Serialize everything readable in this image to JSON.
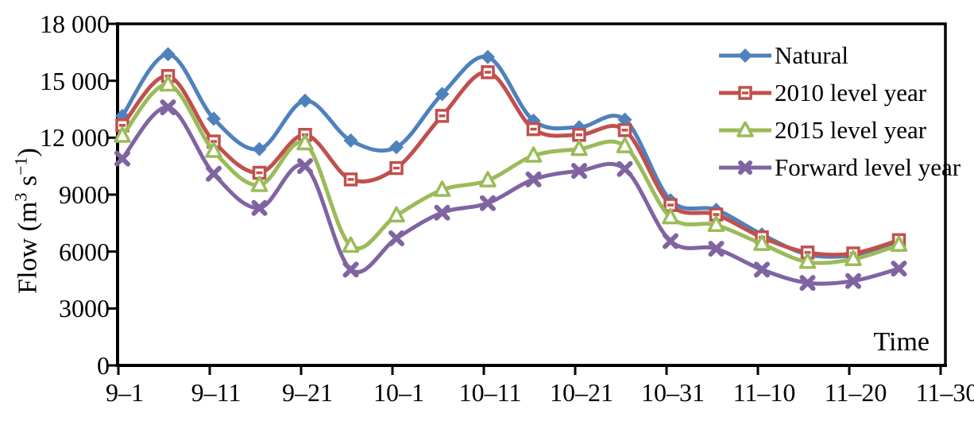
{
  "chart_data": {
    "type": "line",
    "title": "",
    "xlabel": "Time",
    "ylabel": "Flow (m³ s⁻¹)",
    "ylabel_parts": {
      "prefix": "Flow (m",
      "sup1": "3",
      "mid": " s",
      "sup2": "−1",
      "suffix": ")"
    },
    "ylim": [
      0,
      18000
    ],
    "grid": false,
    "legend_position": "top-right-inside",
    "plot_border": true,
    "axis_color": "#000000",
    "y_ticks": [
      {
        "value": 0,
        "label": "0"
      },
      {
        "value": 3000,
        "label": "3000"
      },
      {
        "value": 6000,
        "label": "6000"
      },
      {
        "value": 9000,
        "label": "9000"
      },
      {
        "value": 12000,
        "label": "12 000"
      },
      {
        "value": 15000,
        "label": "15 000"
      },
      {
        "value": 18000,
        "label": "18 000"
      }
    ],
    "x_tick_labels": [
      "9–1",
      "9–11",
      "9–21",
      "10–1",
      "10–11",
      "10–21",
      "10–31",
      "11–10",
      "11–20",
      "11–30"
    ],
    "x_categories": [
      "9–1",
      "9–6",
      "9–11",
      "9–16",
      "9–21",
      "9–26",
      "10–1",
      "10–6",
      "10–11",
      "10–16",
      "10–21",
      "10–26",
      "10–31",
      "11–5",
      "11–10",
      "11–15",
      "11–20",
      "11–25"
    ],
    "series": [
      {
        "name": "Natural",
        "color": "#4F81BD",
        "marker": "diamond",
        "values": [
          13150,
          16400,
          13000,
          11400,
          13950,
          11850,
          11500,
          14300,
          16250,
          12900,
          12550,
          12950,
          8700,
          8200,
          6900,
          5850,
          5800,
          6450
        ]
      },
      {
        "name": "2010 level year",
        "color": "#C0504D",
        "marker": "square-open",
        "values": [
          12650,
          15250,
          11800,
          10150,
          12150,
          9800,
          10400,
          13150,
          15450,
          12450,
          12150,
          12400,
          8450,
          7950,
          6750,
          5950,
          5900,
          6600
        ]
      },
      {
        "name": "2015 level year",
        "color": "#9BBB59",
        "marker": "triangle-open",
        "values": [
          12100,
          14800,
          11300,
          9500,
          11700,
          6300,
          7900,
          9250,
          9750,
          11050,
          11400,
          11550,
          7800,
          7400,
          6400,
          5450,
          5600,
          6350
        ]
      },
      {
        "name": "Forward level year",
        "color": "#8064A2",
        "marker": "x",
        "values": [
          10900,
          13600,
          10100,
          8300,
          10500,
          5050,
          6700,
          8050,
          8550,
          9800,
          10250,
          10350,
          6550,
          6150,
          5050,
          4350,
          4450,
          5100
        ]
      }
    ]
  }
}
